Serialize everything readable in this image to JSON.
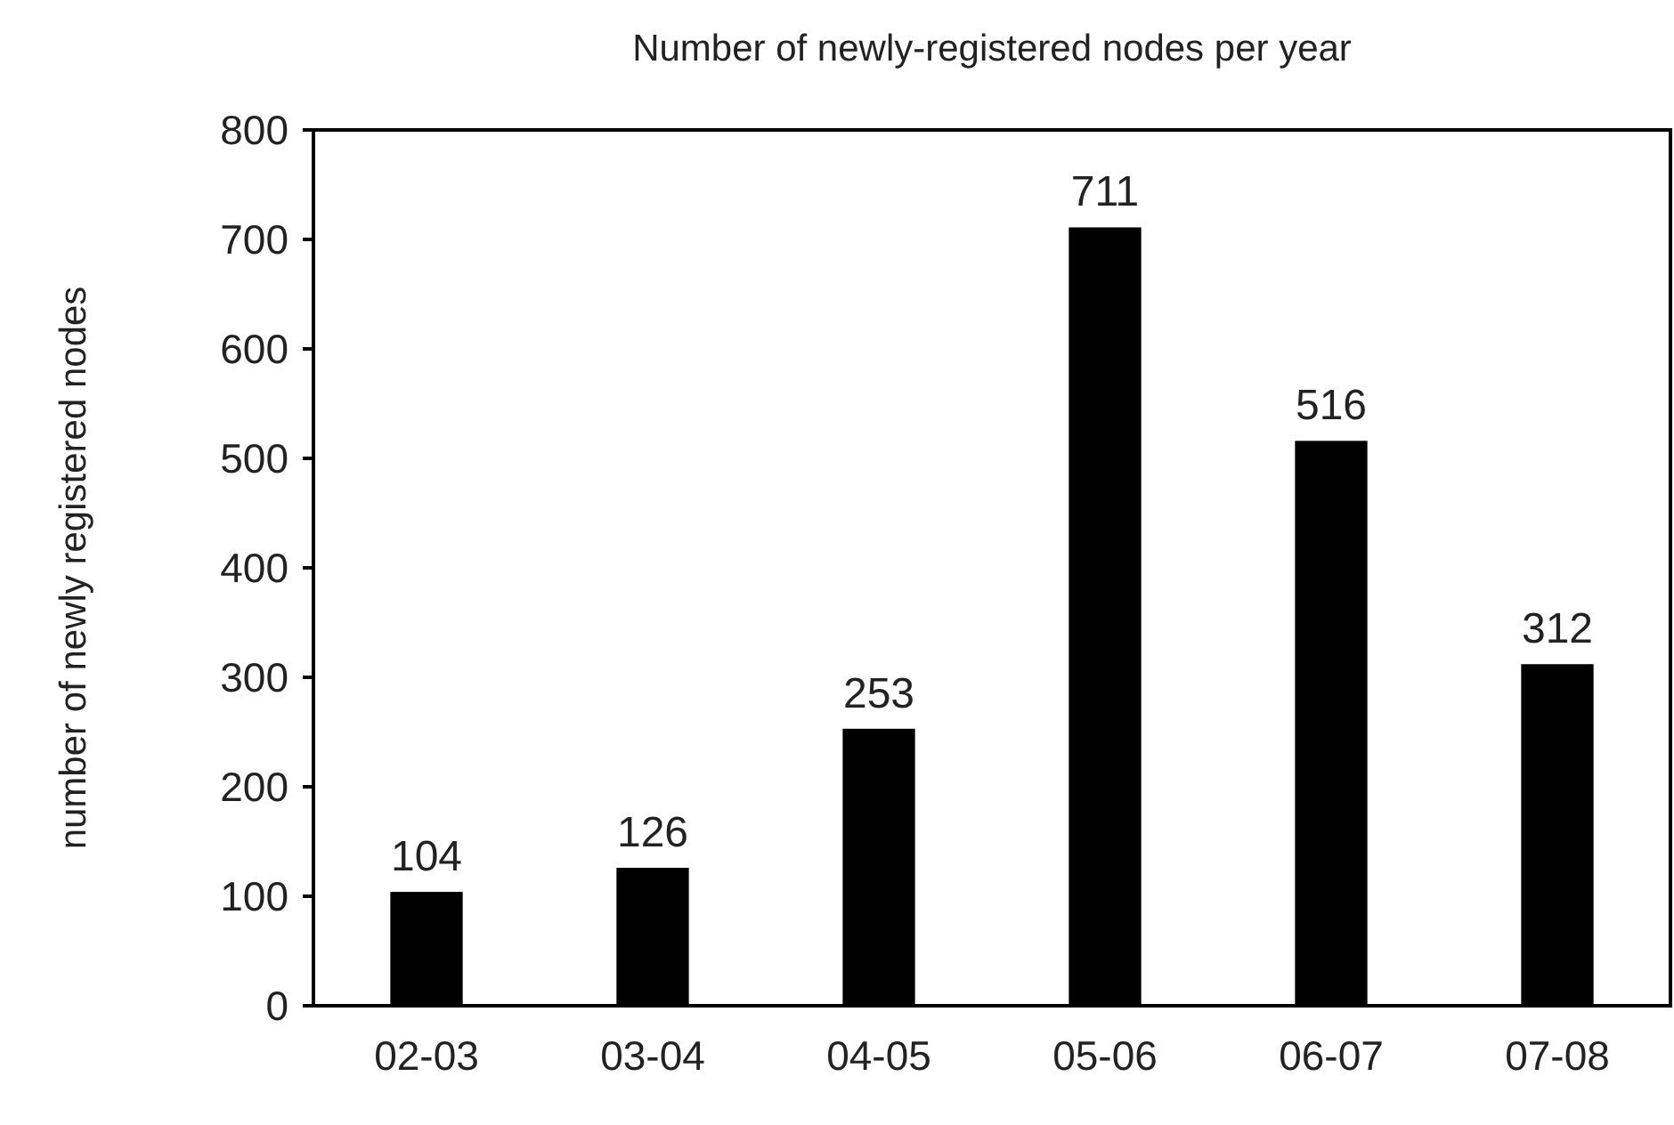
{
  "chart_data": {
    "type": "bar",
    "title": "Number of newly-registered nodes per year",
    "ylabel": "number of newly registered nodes",
    "categories": [
      "02-03",
      "03-04",
      "04-05",
      "05-06",
      "06-07",
      "07-08"
    ],
    "values": [
      104,
      126,
      253,
      711,
      516,
      312
    ],
    "color": "#000000",
    "ylim": [
      0,
      800
    ],
    "yticks": [
      0,
      100,
      200,
      300,
      400,
      500,
      600,
      700,
      800
    ],
    "data_labels": true,
    "grid": false
  }
}
